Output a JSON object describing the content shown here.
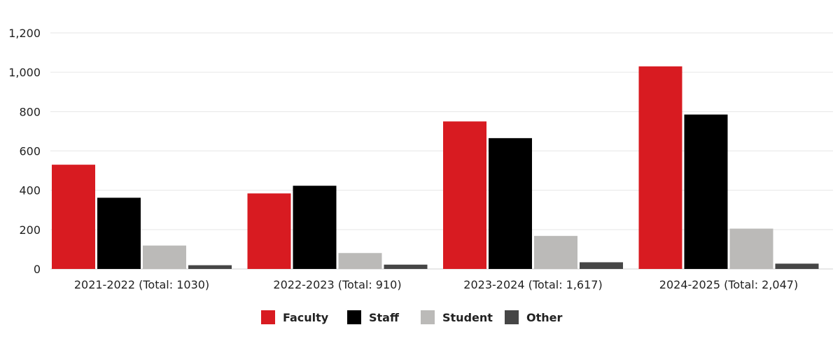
{
  "chart_data": {
    "type": "bar",
    "categories": [
      "2021-2022 (Total: 1030)",
      "2022-2023 (Total: 910)",
      "2023-2024 (Total: 1,617)",
      "2024-2025 (Total: 2,047)"
    ],
    "series": [
      {
        "name": "Faculty",
        "color": "#d81b21",
        "values": [
          530,
          384,
          750,
          1030
        ]
      },
      {
        "name": "Staff",
        "color": "#000000",
        "values": [
          362,
          423,
          665,
          785
        ]
      },
      {
        "name": "Student",
        "color": "#bbbab8",
        "values": [
          119,
          81,
          168,
          205
        ]
      },
      {
        "name": "Other",
        "color": "#464646",
        "values": [
          19,
          22,
          34,
          27
        ]
      }
    ],
    "yticks": [
      "0",
      "200",
      "400",
      "600",
      "800",
      "1,000",
      "1,200"
    ],
    "ylim": [
      0,
      1200
    ],
    "grid": true,
    "legend": "bottom",
    "title": "",
    "xlabel": "",
    "ylabel": ""
  }
}
